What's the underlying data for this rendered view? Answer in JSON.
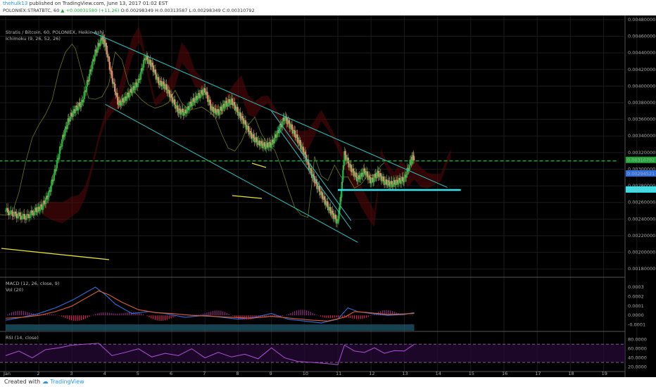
{
  "header": {
    "user": "thehulk13",
    "published_text": "published on TradingView.com, June 13, 2017 01:02 EST",
    "symbol_line": "POLONIEX:STRATBTC, 60",
    "ohlc_change": "▲ +0.00031580 (+11.26)",
    "o": "O:0.00298349",
    "h": "H:0.00313587",
    "l": "L:0.00298349",
    "c": "C:0.00310792"
  },
  "legend": {
    "title": "Stratis / Bitcoin, 60, POLONIEX, Heikin Ashi",
    "ichimoku": "Ichimoku (9, 26, 52, 26)",
    "macd": "MACD (12, 26, close, 9)",
    "vol": "Vol (20)",
    "rsi": "RSI (14, close)"
  },
  "footer": {
    "created": "Created with",
    "brand": "TradingView"
  },
  "colors": {
    "up": "#1db33b",
    "down": "#e08a70",
    "channel": "#2ec4c4",
    "support": "#2ee6f0",
    "yellow": "#e6e03a",
    "price_line": "#21a838",
    "macd": "#2f6fe0",
    "signal": "#e0602a",
    "hist_neg": "#d0245a",
    "rsi": "#b34fd9"
  },
  "chart_data": [
    {
      "type": "candlestick",
      "panel": "price",
      "y_ticks": [
        "0.00480000",
        "0.00460000",
        "0.00440000",
        "0.00420000",
        "0.00400000",
        "0.00380000",
        "0.00360000",
        "0.00340000",
        "0.00320000",
        "0.00300000",
        "0.00280000",
        "0.00260000",
        "0.00240000",
        "0.00220000",
        "0.00200000",
        "0.00180000"
      ],
      "ylim": [
        0.0017,
        0.00485
      ],
      "x_ticks": [
        "Jan",
        "2",
        "3",
        "4",
        "5",
        "6",
        "7",
        "8",
        "9",
        "10",
        "11",
        "12",
        "13",
        "14",
        "15",
        "16",
        "17",
        "18",
        "19"
      ],
      "price_labels": [
        {
          "text": "0.00310792",
          "value": 0.00310792,
          "color": "#21a838"
        },
        {
          "text": "0.00294521",
          "value": 0.00294521,
          "color": "#2f6fe0"
        },
        {
          "text": "0.00275173",
          "value": 0.00275173,
          "color": "#2ee6f0"
        }
      ],
      "series_path": [
        [
          0.0,
          0.0025
        ],
        [
          0.3,
          0.00245
        ],
        [
          0.6,
          0.00242
        ],
        [
          0.9,
          0.0025
        ],
        [
          1.1,
          0.00255
        ],
        [
          1.3,
          0.0027
        ],
        [
          1.5,
          0.003
        ],
        [
          1.7,
          0.00335
        ],
        [
          1.9,
          0.0036
        ],
        [
          2.1,
          0.00372
        ],
        [
          2.3,
          0.0038
        ],
        [
          2.5,
          0.0041
        ],
        [
          2.7,
          0.0044
        ],
        [
          2.9,
          0.00458
        ],
        [
          3.0,
          0.0045
        ],
        [
          3.2,
          0.0041
        ],
        [
          3.4,
          0.00378
        ],
        [
          3.6,
          0.00385
        ],
        [
          3.8,
          0.00395
        ],
        [
          4.0,
          0.00405
        ],
        [
          4.2,
          0.00435
        ],
        [
          4.4,
          0.00425
        ],
        [
          4.6,
          0.00405
        ],
        [
          4.8,
          0.004
        ],
        [
          5.0,
          0.00385
        ],
        [
          5.2,
          0.0037
        ],
        [
          5.4,
          0.00368
        ],
        [
          5.6,
          0.0038
        ],
        [
          5.8,
          0.00388
        ],
        [
          6.0,
          0.00395
        ],
        [
          6.2,
          0.00372
        ],
        [
          6.4,
          0.00368
        ],
        [
          6.6,
          0.00378
        ],
        [
          6.8,
          0.00382
        ],
        [
          7.0,
          0.00368
        ],
        [
          7.2,
          0.00355
        ],
        [
          7.4,
          0.0034
        ],
        [
          7.6,
          0.00332
        ],
        [
          7.8,
          0.00328
        ],
        [
          8.0,
          0.0033
        ],
        [
          8.2,
          0.00345
        ],
        [
          8.4,
          0.00362
        ],
        [
          8.6,
          0.0035
        ],
        [
          8.8,
          0.00335
        ],
        [
          9.0,
          0.00318
        ],
        [
          9.2,
          0.00295
        ],
        [
          9.4,
          0.00278
        ],
        [
          9.6,
          0.00262
        ],
        [
          9.8,
          0.00248
        ],
        [
          10.0,
          0.00236
        ],
        [
          10.1,
          0.0027
        ],
        [
          10.2,
          0.00318
        ],
        [
          10.4,
          0.003
        ],
        [
          10.6,
          0.00288
        ],
        [
          10.8,
          0.00298
        ],
        [
          11.0,
          0.00285
        ],
        [
          11.2,
          0.00295
        ],
        [
          11.4,
          0.00285
        ],
        [
          11.6,
          0.00282
        ],
        [
          11.8,
          0.00285
        ],
        [
          12.0,
          0.00288
        ],
        [
          12.2,
          0.0031
        ],
        [
          12.3,
          0.00315
        ]
      ],
      "lines": [
        {
          "name": "channel-upper",
          "from": [
            2.6,
            0.00465
          ],
          "to": [
            13.3,
            0.00278
          ]
        },
        {
          "name": "channel-lower",
          "from": [
            3.0,
            0.00378
          ],
          "to": [
            10.6,
            0.00212
          ]
        },
        {
          "name": "wedge-left",
          "from": [
            8.2,
            0.0035
          ],
          "to": [
            10.4,
            0.00228
          ]
        },
        {
          "name": "wedge-right",
          "from": [
            8.0,
            0.0037
          ],
          "to": [
            10.4,
            0.00238
          ]
        },
        {
          "name": "support",
          "from": [
            10.0,
            0.00275
          ],
          "to": [
            13.7,
            0.00275
          ]
        },
        {
          "name": "resistance-dashed",
          "from": [
            -0.2,
            0.0031
          ],
          "to": [
            18.4,
            0.0031
          ]
        }
      ]
    },
    {
      "type": "line",
      "panel": "MACD",
      "y_ticks": [
        "0.0003",
        "0.0002",
        "0.0001",
        "0.0000",
        "-0.0001"
      ],
      "ylim": [
        -0.00017,
        0.00039
      ],
      "series": [
        {
          "name": "MACD",
          "points": [
            [
              0,
              -5e-05
            ],
            [
              0.5,
              -2e-05
            ],
            [
              1.0,
              2e-05
            ],
            [
              1.5,
              8e-05
            ],
            [
              2.0,
              0.00016
            ],
            [
              2.5,
              0.00026
            ],
            [
              2.7,
              0.0003
            ],
            [
              3.0,
              0.00022
            ],
            [
              3.3,
              0.00012
            ],
            [
              3.8,
              2e-05
            ],
            [
              4.3,
              4e-05
            ],
            [
              4.8,
              2e-05
            ],
            [
              5.4,
              -2e-05
            ],
            [
              6.0,
              0.0
            ],
            [
              6.5,
              -2e-05
            ],
            [
              7.0,
              -4e-05
            ],
            [
              7.5,
              -2e-05
            ],
            [
              8.0,
              2e-05
            ],
            [
              8.5,
              -4e-05
            ],
            [
              9.0,
              -6e-05
            ],
            [
              9.5,
              -8e-05
            ],
            [
              10.0,
              -4e-05
            ],
            [
              10.3,
              8e-05
            ],
            [
              10.6,
              4e-05
            ],
            [
              11.0,
              2e-05
            ],
            [
              11.5,
              0.0
            ],
            [
              12.0,
              1e-05
            ],
            [
              12.3,
              3e-05
            ]
          ]
        },
        {
          "name": "Signal",
          "points": [
            [
              0,
              -3e-05
            ],
            [
              0.5,
              -2e-05
            ],
            [
              1.0,
              0.0
            ],
            [
              1.5,
              4e-05
            ],
            [
              2.0,
              0.0001
            ],
            [
              2.5,
              0.0002
            ],
            [
              2.8,
              0.00026
            ],
            [
              3.1,
              0.00022
            ],
            [
              3.5,
              0.00014
            ],
            [
              4.0,
              6e-05
            ],
            [
              4.5,
              3e-05
            ],
            [
              5.0,
              2e-05
            ],
            [
              5.6,
              0.0
            ],
            [
              6.2,
              -1e-05
            ],
            [
              6.8,
              -2e-05
            ],
            [
              7.4,
              -3e-05
            ],
            [
              8.0,
              -1e-05
            ],
            [
              8.6,
              -3e-05
            ],
            [
              9.2,
              -5e-05
            ],
            [
              9.7,
              -6e-05
            ],
            [
              10.2,
              -2e-05
            ],
            [
              10.5,
              4e-05
            ],
            [
              10.9,
              3e-05
            ],
            [
              11.5,
              1e-05
            ],
            [
              12.3,
              2e-05
            ]
          ]
        }
      ]
    },
    {
      "type": "line",
      "panel": "RSI",
      "y_ticks": [
        "80.0000",
        "60.0000",
        "40.0000",
        "20.0000"
      ],
      "ylim": [
        10,
        95
      ],
      "bands": [
        70,
        30
      ],
      "series": [
        {
          "name": "RSI",
          "points": [
            [
              0,
              45
            ],
            [
              0.4,
              55
            ],
            [
              0.8,
              40
            ],
            [
              1.2,
              58
            ],
            [
              1.6,
              62
            ],
            [
              2.0,
              68
            ],
            [
              2.4,
              70
            ],
            [
              2.8,
              72
            ],
            [
              3.2,
              45
            ],
            [
              3.6,
              52
            ],
            [
              4.0,
              60
            ],
            [
              4.4,
              42
            ],
            [
              4.8,
              50
            ],
            [
              5.2,
              45
            ],
            [
              5.6,
              60
            ],
            [
              6.0,
              40
            ],
            [
              6.4,
              52
            ],
            [
              6.8,
              42
            ],
            [
              7.2,
              48
            ],
            [
              7.6,
              38
            ],
            [
              8.0,
              62
            ],
            [
              8.4,
              40
            ],
            [
              8.8,
              32
            ],
            [
              9.2,
              30
            ],
            [
              9.6,
              28
            ],
            [
              10.0,
              25
            ],
            [
              10.2,
              68
            ],
            [
              10.5,
              55
            ],
            [
              10.8,
              52
            ],
            [
              11.1,
              62
            ],
            [
              11.4,
              50
            ],
            [
              11.7,
              56
            ],
            [
              12.0,
              55
            ],
            [
              12.3,
              70
            ]
          ]
        }
      ]
    }
  ]
}
